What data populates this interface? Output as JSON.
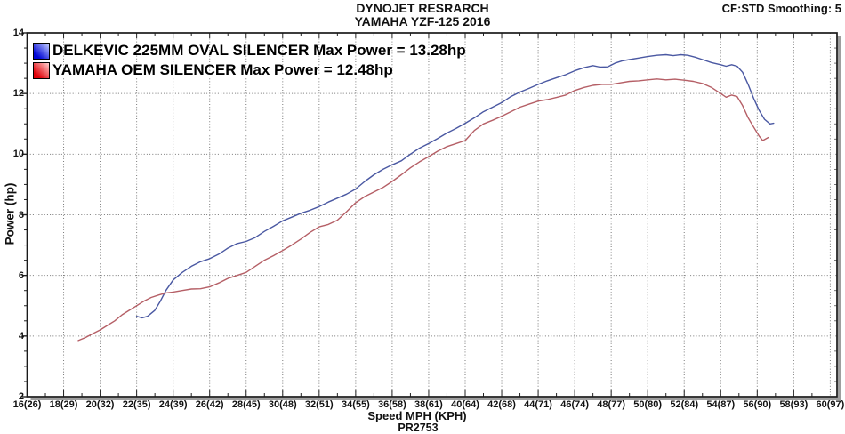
{
  "header": {
    "title": "DYNOJET RESRARCH",
    "subtitle": "YAMAHA YZF-125 2016",
    "smoothing_label": "CF:STD Smoothing: 5"
  },
  "footer": {
    "run_code": "PR2753"
  },
  "chart_data": {
    "type": "line",
    "title": "DYNOJET RESRARCH",
    "subtitle": "YAMAHA YZF-125 2016",
    "xlabel": "Speed MPH (KPH)",
    "ylabel": "Power (hp)",
    "xlim": [
      16,
      60
    ],
    "ylim": [
      2,
      14
    ],
    "x_major_step": 2,
    "y_major_step": 2,
    "grid": "dotted",
    "grid_color": "#7a7a7a",
    "frame_color": "#1a1a1a",
    "shadow_color": "#9e9e9e",
    "legend_position": "top-left",
    "x_tick_labels": [
      "16(26)",
      "18(29)",
      "20(32)",
      "22(35)",
      "24(39)",
      "26(42)",
      "28(45)",
      "30(48)",
      "32(51)",
      "34(55)",
      "36(58)",
      "38(61)",
      "40(64)",
      "42(68)",
      "44(71)",
      "46(74)",
      "48(77)",
      "50(80)",
      "52(84)",
      "54(87)",
      "56(90)",
      "58(93)",
      "60(97)"
    ],
    "y_tick_labels": [
      "2",
      "4",
      "6",
      "8",
      "10",
      "12",
      "14"
    ],
    "series": [
      {
        "name": "DELKEVIC 225MM OVAL SILENCER",
        "label": "DELKEVIC 225MM OVAL SILENCER Max Power = 13.28hp",
        "max_power_hp": 13.28,
        "color": "#4a58a2",
        "swatch_gradient": [
          "#0006d6",
          "#b9c4ff"
        ],
        "points": [
          [
            22.0,
            4.65
          ],
          [
            22.3,
            4.6
          ],
          [
            22.6,
            4.65
          ],
          [
            23.0,
            4.85
          ],
          [
            23.3,
            5.15
          ],
          [
            23.6,
            5.5
          ],
          [
            24.0,
            5.85
          ],
          [
            24.5,
            6.1
          ],
          [
            25.0,
            6.3
          ],
          [
            25.5,
            6.45
          ],
          [
            26.0,
            6.55
          ],
          [
            26.5,
            6.7
          ],
          [
            27.0,
            6.9
          ],
          [
            27.5,
            7.05
          ],
          [
            28.0,
            7.12
          ],
          [
            28.5,
            7.25
          ],
          [
            29.0,
            7.45
          ],
          [
            29.5,
            7.62
          ],
          [
            30.0,
            7.8
          ],
          [
            30.5,
            7.92
          ],
          [
            31.0,
            8.05
          ],
          [
            31.5,
            8.15
          ],
          [
            32.0,
            8.27
          ],
          [
            32.5,
            8.42
          ],
          [
            33.0,
            8.55
          ],
          [
            33.5,
            8.68
          ],
          [
            34.0,
            8.85
          ],
          [
            34.5,
            9.1
          ],
          [
            35.0,
            9.32
          ],
          [
            35.5,
            9.5
          ],
          [
            36.0,
            9.65
          ],
          [
            36.5,
            9.78
          ],
          [
            37.0,
            10.0
          ],
          [
            37.5,
            10.2
          ],
          [
            38.0,
            10.35
          ],
          [
            38.5,
            10.52
          ],
          [
            39.0,
            10.7
          ],
          [
            39.5,
            10.85
          ],
          [
            40.0,
            11.02
          ],
          [
            40.5,
            11.2
          ],
          [
            41.0,
            11.4
          ],
          [
            41.5,
            11.55
          ],
          [
            42.0,
            11.7
          ],
          [
            42.5,
            11.9
          ],
          [
            43.0,
            12.05
          ],
          [
            43.5,
            12.17
          ],
          [
            44.0,
            12.3
          ],
          [
            44.5,
            12.42
          ],
          [
            45.0,
            12.52
          ],
          [
            45.5,
            12.62
          ],
          [
            46.0,
            12.75
          ],
          [
            46.5,
            12.85
          ],
          [
            47.0,
            12.92
          ],
          [
            47.4,
            12.87
          ],
          [
            47.8,
            12.88
          ],
          [
            48.2,
            13.0
          ],
          [
            48.6,
            13.08
          ],
          [
            49.0,
            13.12
          ],
          [
            49.5,
            13.17
          ],
          [
            50.0,
            13.22
          ],
          [
            50.5,
            13.26
          ],
          [
            51.0,
            13.28
          ],
          [
            51.4,
            13.25
          ],
          [
            51.8,
            13.28
          ],
          [
            52.2,
            13.26
          ],
          [
            52.6,
            13.2
          ],
          [
            53.0,
            13.12
          ],
          [
            53.5,
            13.02
          ],
          [
            54.0,
            12.95
          ],
          [
            54.3,
            12.9
          ],
          [
            54.6,
            12.95
          ],
          [
            54.9,
            12.9
          ],
          [
            55.2,
            12.7
          ],
          [
            55.5,
            12.3
          ],
          [
            55.8,
            11.85
          ],
          [
            56.1,
            11.45
          ],
          [
            56.4,
            11.15
          ],
          [
            56.7,
            11.0
          ],
          [
            56.9,
            11.02
          ]
        ]
      },
      {
        "name": "YAMAHA OEM SILENCER",
        "label": "YAMAHA OEM SILENCER Max Power = 12.48hp",
        "max_power_hp": 12.48,
        "color": "#b55f66",
        "swatch_gradient": [
          "#e00008",
          "#ffc2c2"
        ],
        "points": [
          [
            18.8,
            3.85
          ],
          [
            19.2,
            3.95
          ],
          [
            19.6,
            4.08
          ],
          [
            20.0,
            4.2
          ],
          [
            20.4,
            4.35
          ],
          [
            20.8,
            4.5
          ],
          [
            21.2,
            4.7
          ],
          [
            21.6,
            4.85
          ],
          [
            22.0,
            5.0
          ],
          [
            22.4,
            5.15
          ],
          [
            22.8,
            5.27
          ],
          [
            23.2,
            5.35
          ],
          [
            23.6,
            5.42
          ],
          [
            24.0,
            5.45
          ],
          [
            24.5,
            5.5
          ],
          [
            25.0,
            5.55
          ],
          [
            25.5,
            5.56
          ],
          [
            26.0,
            5.62
          ],
          [
            26.5,
            5.75
          ],
          [
            27.0,
            5.9
          ],
          [
            27.5,
            6.0
          ],
          [
            28.0,
            6.1
          ],
          [
            28.5,
            6.3
          ],
          [
            29.0,
            6.5
          ],
          [
            29.5,
            6.65
          ],
          [
            30.0,
            6.82
          ],
          [
            30.5,
            7.0
          ],
          [
            31.0,
            7.2
          ],
          [
            31.5,
            7.42
          ],
          [
            32.0,
            7.6
          ],
          [
            32.5,
            7.68
          ],
          [
            33.0,
            7.82
          ],
          [
            33.5,
            8.1
          ],
          [
            34.0,
            8.4
          ],
          [
            34.5,
            8.6
          ],
          [
            35.0,
            8.75
          ],
          [
            35.5,
            8.9
          ],
          [
            36.0,
            9.1
          ],
          [
            36.5,
            9.32
          ],
          [
            37.0,
            9.55
          ],
          [
            37.5,
            9.75
          ],
          [
            38.0,
            9.92
          ],
          [
            38.5,
            10.1
          ],
          [
            39.0,
            10.25
          ],
          [
            39.5,
            10.35
          ],
          [
            40.0,
            10.45
          ],
          [
            40.5,
            10.78
          ],
          [
            41.0,
            11.0
          ],
          [
            41.5,
            11.12
          ],
          [
            42.0,
            11.25
          ],
          [
            42.5,
            11.4
          ],
          [
            43.0,
            11.55
          ],
          [
            43.5,
            11.65
          ],
          [
            44.0,
            11.75
          ],
          [
            44.5,
            11.8
          ],
          [
            45.0,
            11.87
          ],
          [
            45.5,
            11.95
          ],
          [
            46.0,
            12.1
          ],
          [
            46.5,
            12.2
          ],
          [
            47.0,
            12.27
          ],
          [
            47.5,
            12.3
          ],
          [
            48.0,
            12.3
          ],
          [
            48.5,
            12.35
          ],
          [
            49.0,
            12.4
          ],
          [
            49.5,
            12.42
          ],
          [
            50.0,
            12.45
          ],
          [
            50.5,
            12.48
          ],
          [
            51.0,
            12.45
          ],
          [
            51.5,
            12.47
          ],
          [
            52.0,
            12.44
          ],
          [
            52.5,
            12.4
          ],
          [
            53.0,
            12.33
          ],
          [
            53.5,
            12.2
          ],
          [
            54.0,
            12.0
          ],
          [
            54.3,
            11.88
          ],
          [
            54.6,
            11.95
          ],
          [
            54.9,
            11.9
          ],
          [
            55.2,
            11.6
          ],
          [
            55.5,
            11.2
          ],
          [
            55.8,
            10.9
          ],
          [
            56.1,
            10.6
          ],
          [
            56.3,
            10.45
          ],
          [
            56.6,
            10.55
          ]
        ]
      }
    ]
  }
}
